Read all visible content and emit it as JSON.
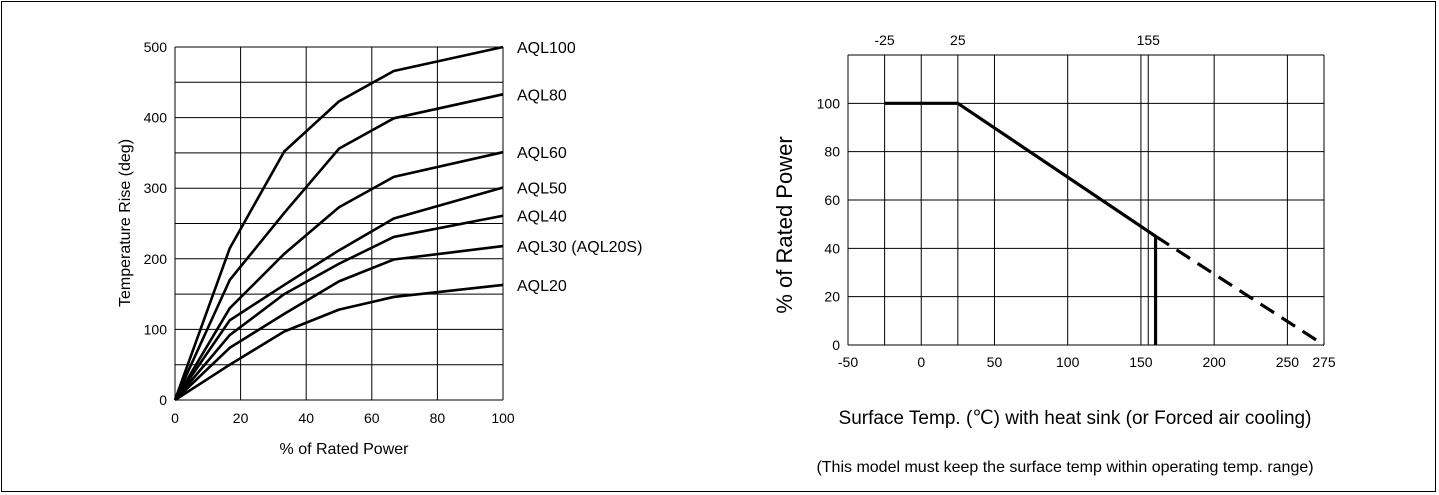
{
  "chart_data": [
    {
      "type": "line",
      "xlabel": "% of Rated Power",
      "ylabel": "Temperature Rise (deg)",
      "xlim": [
        0,
        100
      ],
      "ylim": [
        0,
        500
      ],
      "xticks": [
        "0",
        "20",
        "40",
        "60",
        "80",
        "100"
      ],
      "yticks": [
        "0",
        "100",
        "200",
        "300",
        "400",
        "500"
      ],
      "grid": true,
      "series": [
        {
          "name": "AQL100",
          "x": [
            0,
            16.7,
            33.3,
            50,
            66.7,
            100
          ],
          "values": [
            0,
            215,
            352,
            423,
            466,
            500
          ]
        },
        {
          "name": "AQL80",
          "x": [
            0,
            16.7,
            33.3,
            50,
            66.7,
            100
          ],
          "values": [
            0,
            170,
            265,
            356,
            399,
            433
          ]
        },
        {
          "name": "AQL60",
          "x": [
            0,
            16.7,
            33.3,
            50,
            66.7,
            100
          ],
          "values": [
            0,
            130,
            207,
            273,
            316,
            351
          ]
        },
        {
          "name": "AQL50",
          "x": [
            0,
            16.7,
            33.3,
            50,
            66.7,
            100
          ],
          "values": [
            0,
            113,
            163,
            212,
            257,
            301
          ]
        },
        {
          "name": "AQL40",
          "x": [
            0,
            16.7,
            33.3,
            50,
            66.7,
            100
          ],
          "values": [
            0,
            92,
            150,
            193,
            231,
            261
          ]
        },
        {
          "name": "AQL30 (AQL20S)",
          "x": [
            0,
            16.7,
            33.3,
            50,
            66.7,
            100
          ],
          "values": [
            0,
            74,
            122,
            168,
            199,
            218
          ]
        },
        {
          "name": "AQL20",
          "x": [
            0,
            16.7,
            33.3,
            50,
            66.7,
            100
          ],
          "values": [
            0,
            50,
            97,
            128,
            146,
            163
          ]
        }
      ]
    },
    {
      "type": "line",
      "xlabel": "Surface Temp. (℃) with heat sink (or Forced air cooling)",
      "ylabel": "% of Rated Power",
      "note": "(This model must keep the surface temp within operating temp. range)",
      "xlim": [
        -50,
        275
      ],
      "ylim": [
        0,
        120
      ],
      "xticks": [
        "-50",
        "0",
        "50",
        "100",
        "150",
        "200",
        "250",
        "275"
      ],
      "yticks": [
        "0",
        "20",
        "40",
        "60",
        "80",
        "100"
      ],
      "top_ticks": [
        {
          "value": -25,
          "label": "-25"
        },
        {
          "value": 25,
          "label": "25"
        },
        {
          "value": 155,
          "label": "155"
        }
      ],
      "grid": true,
      "series": [
        {
          "x": [
            -25,
            25,
            160
          ],
          "values": [
            100,
            100,
            45
          ],
          "style": "solid"
        },
        {
          "x": [
            160,
            160
          ],
          "values": [
            45,
            0
          ],
          "style": "solid"
        },
        {
          "x": [
            160,
            275
          ],
          "values": [
            45,
            0
          ],
          "style": "dashed"
        }
      ]
    }
  ]
}
